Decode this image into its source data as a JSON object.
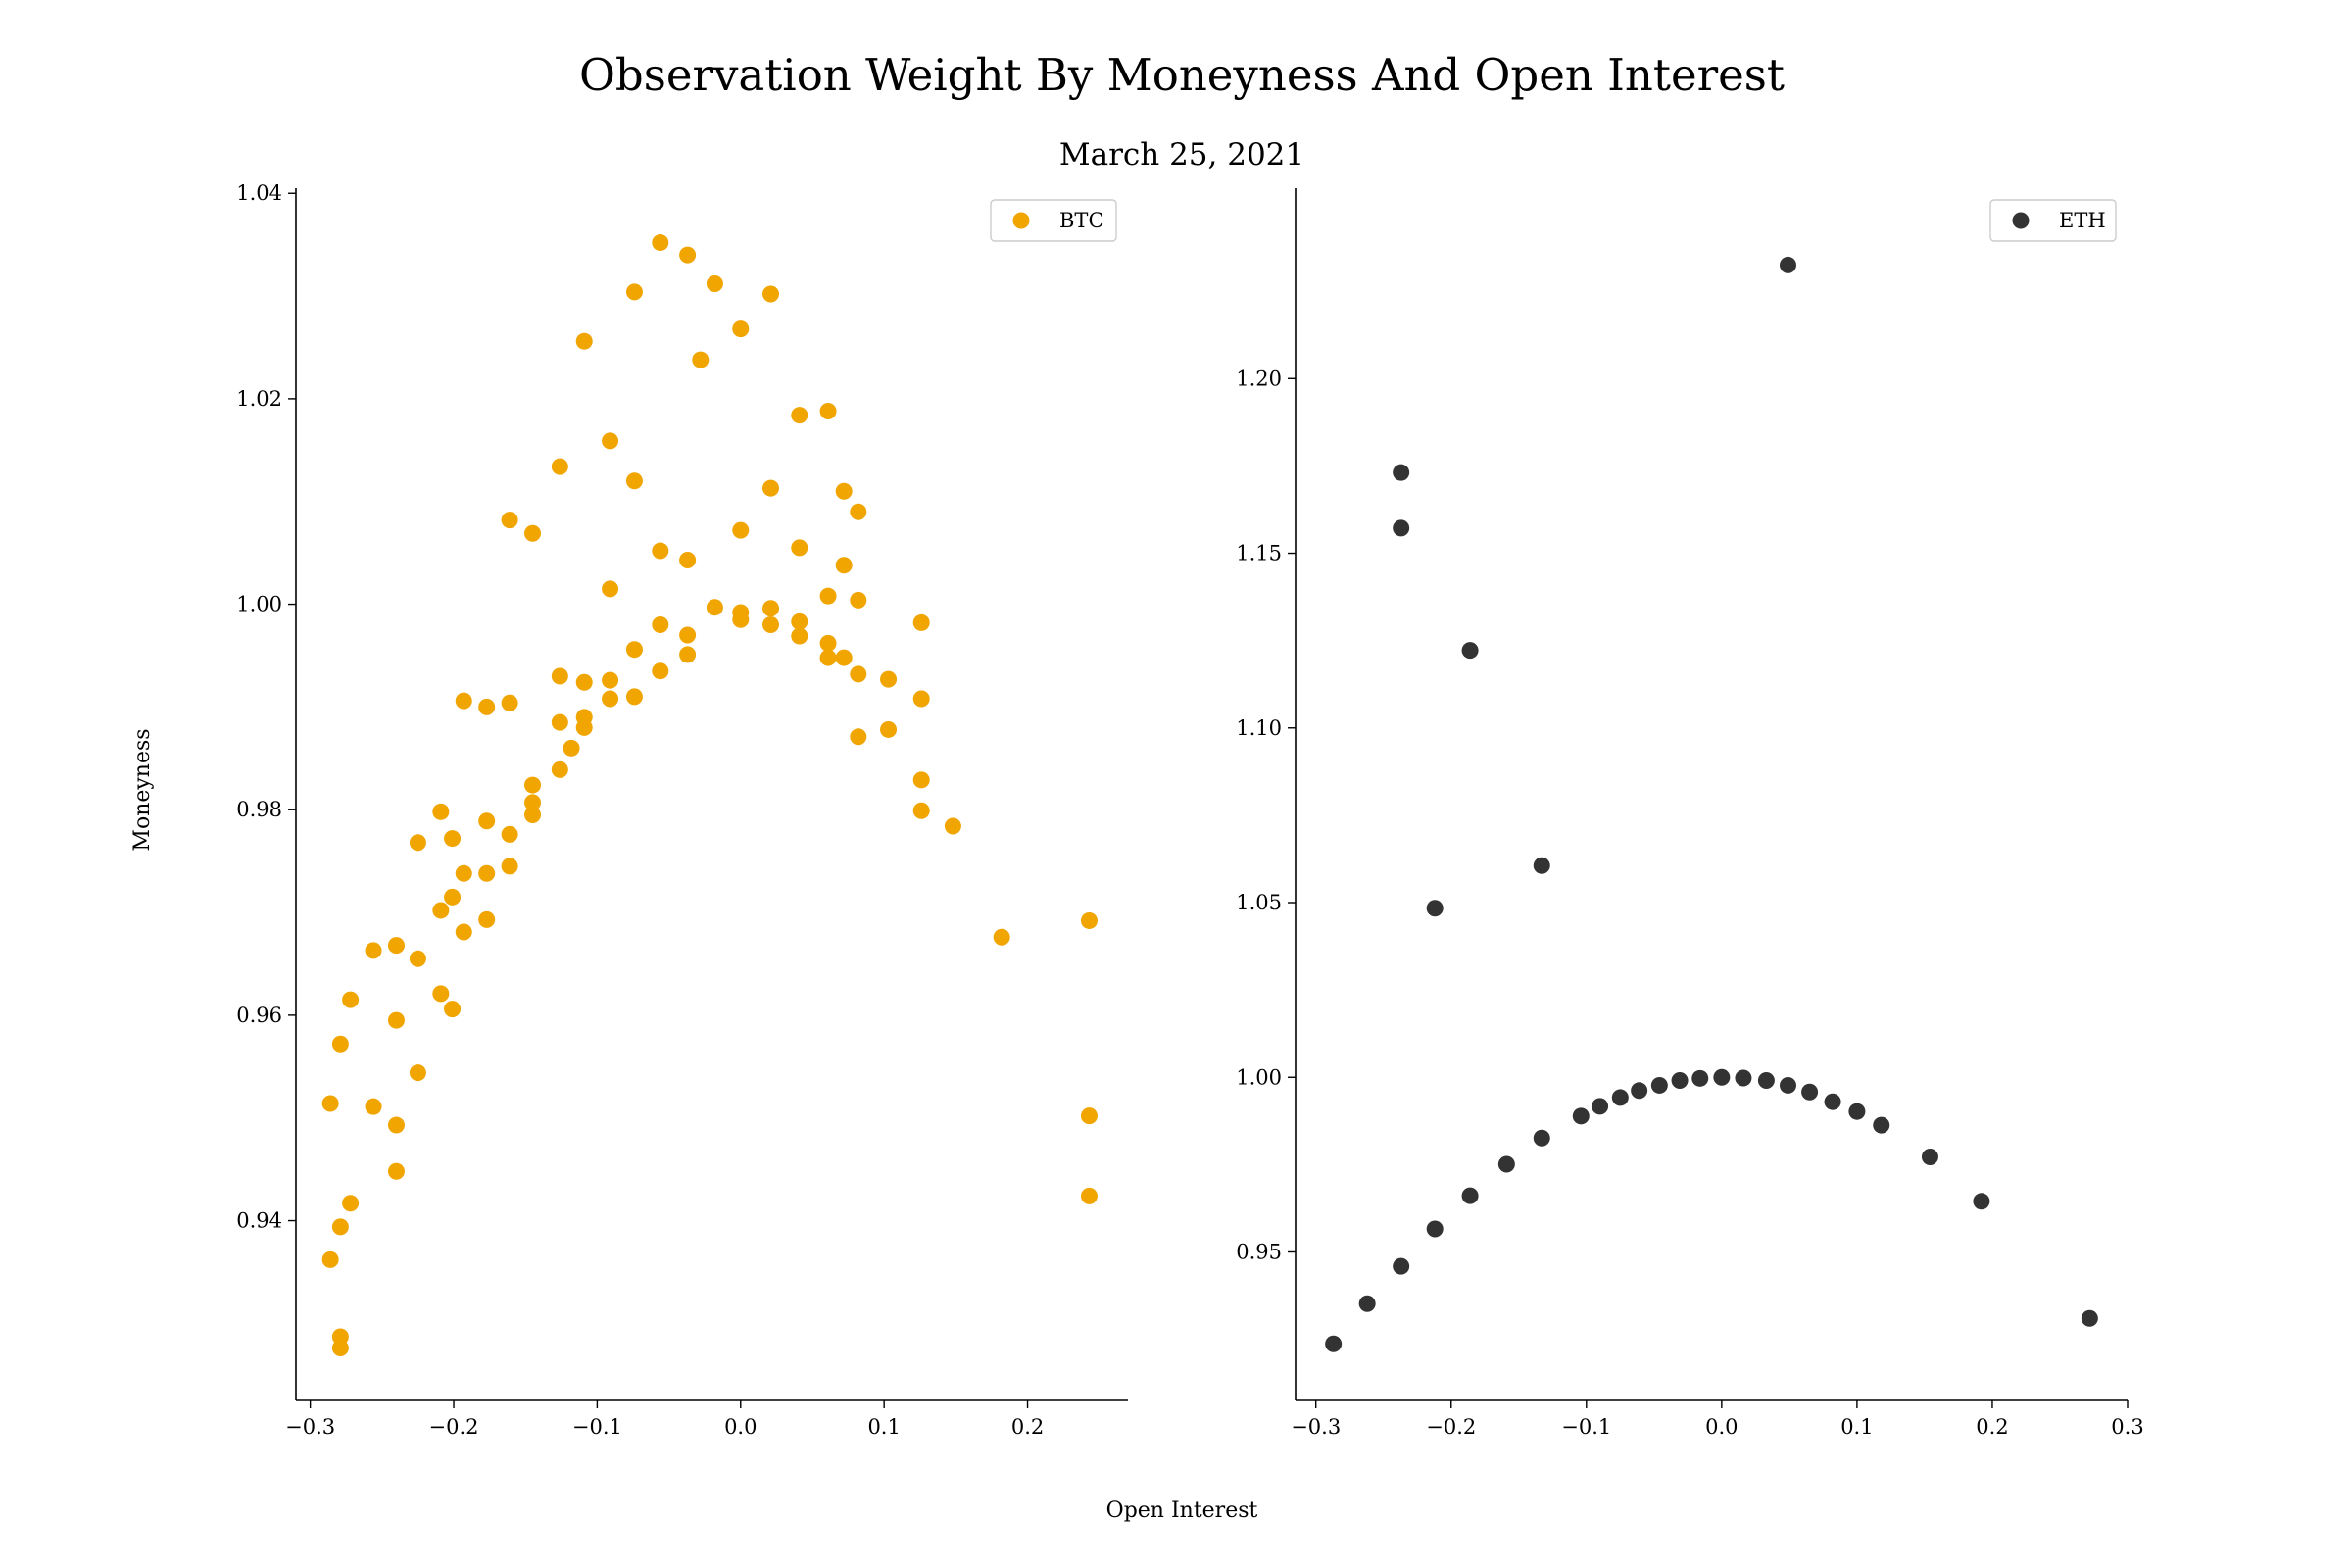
{
  "figure": {
    "title": "Observation Weight By Moneyness And Open Interest",
    "subtitle": "March 25, 2021",
    "xlabel": "Open Interest",
    "ylabel": "Moneyness"
  },
  "chart_data": [
    {
      "type": "scatter",
      "title": "",
      "xlabel": "Open Interest",
      "ylabel": "Moneyness",
      "xlim": [
        -0.31,
        0.27
      ],
      "ylim": [
        0.9225,
        1.0405
      ],
      "xticks": [
        -0.3,
        -0.2,
        -0.1,
        0.0,
        0.1,
        0.2
      ],
      "xtick_labels": [
        "−0.3",
        "−0.2",
        "−0.1",
        "0.0",
        "0.1",
        "0.2"
      ],
      "yticks": [
        0.94,
        0.96,
        0.98,
        1.0,
        1.02,
        1.04
      ],
      "ytick_labels": [
        "0.94",
        "0.96",
        "0.98",
        "1.00",
        "1.02",
        "1.04"
      ],
      "legend": "top-right",
      "grid": false,
      "series": [
        {
          "name": "BTC",
          "color": "#f0a500",
          "points": [
            [
              -0.056,
              1.0352
            ],
            [
              -0.037,
              1.034
            ],
            [
              -0.018,
              1.0312
            ],
            [
              -0.074,
              1.0304
            ],
            [
              0.021,
              1.0302
            ],
            [
              0.0,
              1.0268
            ],
            [
              -0.109,
              1.0256
            ],
            [
              -0.028,
              1.0238
            ],
            [
              0.061,
              1.0188
            ],
            [
              0.041,
              1.0184
            ],
            [
              -0.091,
              1.0159
            ],
            [
              -0.126,
              1.0134
            ],
            [
              -0.074,
              1.012
            ],
            [
              0.021,
              1.0113
            ],
            [
              0.072,
              1.011
            ],
            [
              0.082,
              1.009
            ],
            [
              -0.161,
              1.0082
            ],
            [
              -0.145,
              1.0069
            ],
            [
              0.0,
              1.0072
            ],
            [
              0.041,
              1.0055
            ],
            [
              -0.056,
              1.0052
            ],
            [
              -0.037,
              1.0043
            ],
            [
              0.072,
              1.0038
            ],
            [
              -0.091,
              1.0015
            ],
            [
              0.061,
              1.0008
            ],
            [
              0.082,
              1.0004
            ],
            [
              -0.018,
              0.9997
            ],
            [
              0.021,
              0.9996
            ],
            [
              0.0,
              0.9992
            ],
            [
              0.0,
              0.9985
            ],
            [
              0.041,
              0.9983
            ],
            [
              0.126,
              0.9982
            ],
            [
              -0.056,
              0.998
            ],
            [
              0.021,
              0.998
            ],
            [
              -0.037,
              0.997
            ],
            [
              0.041,
              0.9969
            ],
            [
              0.061,
              0.9962
            ],
            [
              -0.074,
              0.9956
            ],
            [
              -0.037,
              0.9951
            ],
            [
              0.061,
              0.9948
            ],
            [
              0.072,
              0.9948
            ],
            [
              -0.056,
              0.9935
            ],
            [
              0.082,
              0.9932
            ],
            [
              -0.126,
              0.993
            ],
            [
              0.103,
              0.9927
            ],
            [
              -0.091,
              0.9926
            ],
            [
              -0.109,
              0.9924
            ],
            [
              -0.074,
              0.991
            ],
            [
              0.126,
              0.9908
            ],
            [
              -0.091,
              0.9908
            ],
            [
              -0.193,
              0.9906
            ],
            [
              -0.161,
              0.9904
            ],
            [
              -0.177,
              0.99
            ],
            [
              -0.109,
              0.989
            ],
            [
              -0.126,
              0.9885
            ],
            [
              -0.109,
              0.988
            ],
            [
              0.103,
              0.9878
            ],
            [
              0.082,
              0.9871
            ],
            [
              -0.118,
              0.986
            ],
            [
              -0.126,
              0.9839
            ],
            [
              0.126,
              0.9829
            ],
            [
              -0.145,
              0.9824
            ],
            [
              -0.145,
              0.9807
            ],
            [
              -0.209,
              0.9798
            ],
            [
              0.126,
              0.9799
            ],
            [
              -0.145,
              0.9795
            ],
            [
              -0.177,
              0.9789
            ],
            [
              0.148,
              0.9784
            ],
            [
              -0.161,
              0.9776
            ],
            [
              -0.201,
              0.9772
            ],
            [
              -0.225,
              0.9768
            ],
            [
              -0.161,
              0.9745
            ],
            [
              -0.193,
              0.9738
            ],
            [
              -0.177,
              0.9738
            ],
            [
              -0.201,
              0.9715
            ],
            [
              -0.209,
              0.9702
            ],
            [
              -0.177,
              0.9693
            ],
            [
              0.243,
              0.9692
            ],
            [
              -0.193,
              0.9681
            ],
            [
              0.182,
              0.9676
            ],
            [
              -0.24,
              0.9668
            ],
            [
              -0.256,
              0.9663
            ],
            [
              -0.225,
              0.9655
            ],
            [
              -0.272,
              0.9615
            ],
            [
              -0.209,
              0.9621
            ],
            [
              -0.201,
              0.9606
            ],
            [
              -0.24,
              0.9595
            ],
            [
              -0.279,
              0.9572
            ],
            [
              -0.225,
              0.9544
            ],
            [
              -0.286,
              0.9514
            ],
            [
              -0.256,
              0.9511
            ],
            [
              0.243,
              0.9502
            ],
            [
              -0.24,
              0.9493
            ],
            [
              -0.24,
              0.9448
            ],
            [
              0.243,
              0.9424
            ],
            [
              -0.272,
              0.9417
            ],
            [
              -0.279,
              0.9394
            ],
            [
              -0.286,
              0.9362
            ],
            [
              -0.279,
              0.9287
            ],
            [
              -0.279,
              0.9276
            ]
          ]
        }
      ]
    },
    {
      "type": "scatter",
      "title": "",
      "xlabel": "Open Interest",
      "ylabel": "Moneyness",
      "xlim": [
        -0.315,
        0.3
      ],
      "ylim": [
        0.9075,
        1.2545
      ],
      "xticks": [
        -0.3,
        -0.2,
        -0.1,
        0.0,
        0.1,
        0.2,
        0.3
      ],
      "xtick_labels": [
        "−0.3",
        "−0.2",
        "−0.1",
        "0.0",
        "0.1",
        "0.2",
        "0.3"
      ],
      "yticks": [
        0.95,
        1.0,
        1.05,
        1.1,
        1.15,
        1.2
      ],
      "ytick_labels": [
        "0.95",
        "1.00",
        "1.05",
        "1.10",
        "1.15",
        "1.20"
      ],
      "legend": "top-right",
      "grid": false,
      "series": [
        {
          "name": "ETH",
          "color": "#333333",
          "points": [
            [
              0.049,
              1.2325
            ],
            [
              -0.237,
              1.1731
            ],
            [
              -0.237,
              1.1572
            ],
            [
              -0.186,
              1.1222
            ],
            [
              -0.133,
              1.0606
            ],
            [
              -0.212,
              1.0484
            ],
            [
              -0.287,
              0.9237
            ],
            [
              -0.262,
              0.9352
            ],
            [
              -0.237,
              0.9459
            ],
            [
              -0.212,
              0.9566
            ],
            [
              -0.186,
              0.9661
            ],
            [
              -0.159,
              0.9751
            ],
            [
              -0.133,
              0.9826
            ],
            [
              -0.104,
              0.9889
            ],
            [
              -0.09,
              0.9917
            ],
            [
              -0.075,
              0.9942
            ],
            [
              -0.061,
              0.9962
            ],
            [
              -0.046,
              0.9977
            ],
            [
              -0.031,
              0.9991
            ],
            [
              -0.016,
              0.9997
            ],
            [
              0.0,
              1.0
            ],
            [
              0.016,
              0.9998
            ],
            [
              0.033,
              0.9991
            ],
            [
              0.049,
              0.9977
            ],
            [
              0.065,
              0.9958
            ],
            [
              0.082,
              0.993
            ],
            [
              0.1,
              0.9902
            ],
            [
              0.118,
              0.9863
            ],
            [
              0.154,
              0.9772
            ],
            [
              0.192,
              0.9645
            ],
            [
              0.272,
              0.931
            ]
          ]
        }
      ]
    }
  ]
}
